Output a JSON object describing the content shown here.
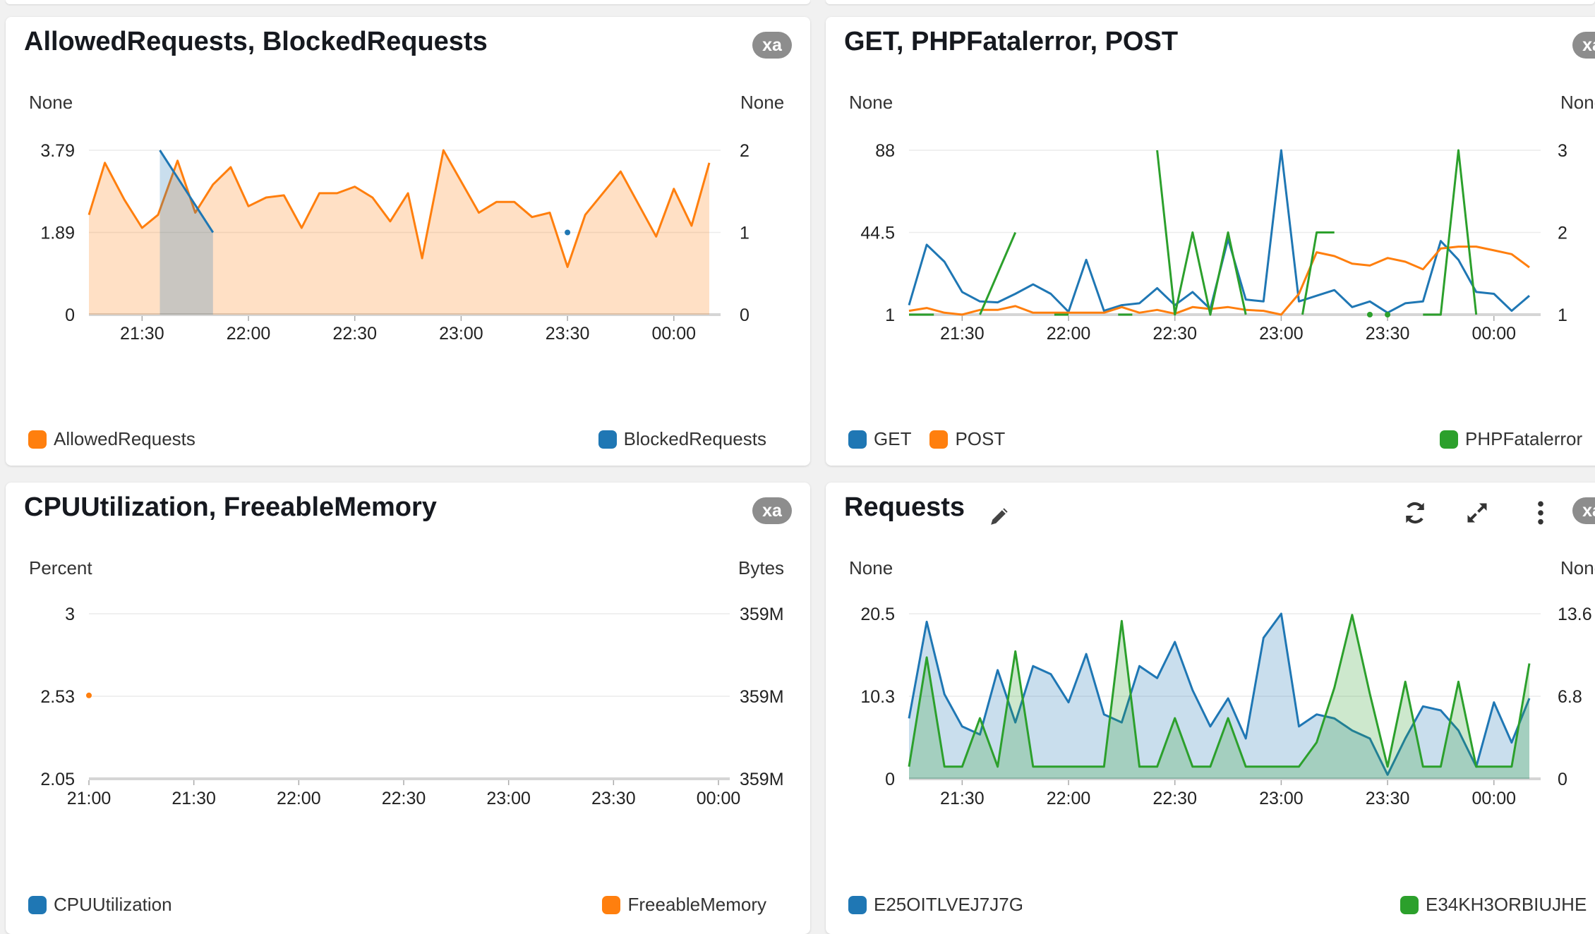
{
  "panels": [
    {
      "title": "AllowedRequests, BlockedRequests",
      "badge": "xa",
      "left_unit": "None",
      "right_unit": "None",
      "legend_left": [
        {
          "name": "AllowedRequests",
          "color": "#ff7f0e"
        }
      ],
      "legend_right": [
        {
          "name": "BlockedRequests",
          "color": "#1f77b4"
        }
      ]
    },
    {
      "title": "GET, PHPFatalerror, POST",
      "badge": "xa",
      "left_unit": "None",
      "right_unit": "None",
      "legend_left": [
        {
          "name": "GET",
          "color": "#1f77b4"
        },
        {
          "name": "POST",
          "color": "#ff7f0e"
        }
      ],
      "legend_right": [
        {
          "name": "PHPFatalerror",
          "color": "#2ca02c"
        }
      ]
    },
    {
      "title": "CPUUtilization, FreeableMemory",
      "badge": "xa",
      "left_unit": "Percent",
      "right_unit": "Bytes",
      "legend_left": [
        {
          "name": "CPUUtilization",
          "color": "#1f77b4"
        }
      ],
      "legend_right": [
        {
          "name": "FreeableMemory",
          "color": "#ff7f0e"
        }
      ]
    },
    {
      "title": "Requests",
      "badge": "xa",
      "left_unit": "None",
      "right_unit": "None",
      "icons": [
        "edit-pencil-icon",
        "refresh-icon",
        "expand-icon",
        "more-vertical-icon"
      ],
      "legend_left": [
        {
          "name": "E25OITLVEJ7J7G",
          "color": "#1f77b4"
        }
      ],
      "legend_right": [
        {
          "name": "E34KH3ORBIUJHE",
          "color": "#2ca02c"
        }
      ]
    }
  ],
  "chart_data": [
    {
      "type": "area",
      "title": "AllowedRequests, BlockedRequests",
      "x_ticks": [
        "21:30",
        "22:00",
        "22:30",
        "23:00",
        "23:30",
        "00:00"
      ],
      "x_tick_minutes": [
        30,
        60,
        90,
        120,
        150,
        180
      ],
      "x_range_minutes": [
        15,
        190
      ],
      "y_left": {
        "label": "None",
        "ticks": [
          "0",
          "1.89",
          "3.79"
        ],
        "range": [
          0,
          3.79
        ]
      },
      "y_right": {
        "label": "None",
        "ticks": [
          "0",
          "1",
          "2"
        ],
        "range": [
          0,
          2
        ]
      },
      "series": [
        {
          "name": "AllowedRequests",
          "axis": "left",
          "color": "#ff7f0e",
          "fill": true,
          "points": [
            [
              15,
              2.3
            ],
            [
              19.5,
              3.5
            ],
            [
              25,
              2.65
            ],
            [
              30,
              2.0
            ],
            [
              34.5,
              2.3
            ],
            [
              40,
              3.55
            ],
            [
              45,
              2.35
            ],
            [
              50,
              3.0
            ],
            [
              55,
              3.4
            ],
            [
              60,
              2.5
            ],
            [
              65,
              2.7
            ],
            [
              70,
              2.75
            ],
            [
              75,
              2.0
            ],
            [
              80,
              2.8
            ],
            [
              85,
              2.8
            ],
            [
              90,
              2.95
            ],
            [
              95,
              2.7
            ],
            [
              100,
              2.15
            ],
            [
              105,
              2.8
            ],
            [
              109,
              1.3
            ],
            [
              115,
              3.79
            ],
            [
              125,
              2.35
            ],
            [
              130,
              2.6
            ],
            [
              135,
              2.6
            ],
            [
              140,
              2.25
            ],
            [
              145,
              2.35
            ],
            [
              150,
              1.1
            ],
            [
              155,
              2.3
            ],
            [
              165,
              3.3
            ],
            [
              175,
              1.8
            ],
            [
              180,
              2.9
            ],
            [
              185,
              2.05
            ],
            [
              190,
              3.5
            ]
          ]
        },
        {
          "name": "BlockedRequests",
          "axis": "right",
          "color": "#1f77b4",
          "fill": true,
          "points": [
            [
              35,
              2.0
            ],
            [
              50,
              1.0
            ]
          ],
          "extra_points": [
            [
              150,
              1.0
            ]
          ]
        }
      ]
    },
    {
      "type": "line",
      "title": "GET, PHPFatalerror, POST",
      "x_ticks": [
        "21:30",
        "22:00",
        "22:30",
        "23:00",
        "23:30",
        "00:00"
      ],
      "x_tick_minutes": [
        30,
        60,
        90,
        120,
        150,
        180
      ],
      "x_range_minutes": [
        15,
        190
      ],
      "y_left": {
        "label": "None",
        "ticks": [
          "1",
          "44.5",
          "88"
        ],
        "range": [
          1,
          88
        ]
      },
      "y_right": {
        "label": "None",
        "ticks": [
          "1",
          "2",
          "3"
        ],
        "range": [
          1,
          3
        ]
      },
      "series": [
        {
          "name": "GET",
          "axis": "left",
          "color": "#1f77b4",
          "points": [
            [
              15,
              6
            ],
            [
              20,
              38
            ],
            [
              25,
              29
            ],
            [
              30,
              13
            ],
            [
              35,
              8
            ],
            [
              40,
              7.5
            ],
            [
              45,
              12
            ],
            [
              50,
              17
            ],
            [
              55,
              12
            ],
            [
              60,
              2.5
            ],
            [
              65,
              30
            ],
            [
              70,
              3
            ],
            [
              75,
              6
            ],
            [
              80,
              7
            ],
            [
              85,
              15
            ],
            [
              90,
              6
            ],
            [
              95,
              13
            ],
            [
              100,
              4
            ],
            [
              105,
              41
            ],
            [
              110,
              9
            ],
            [
              115,
              8
            ],
            [
              120,
              88
            ],
            [
              125,
              8
            ],
            [
              130,
              11
            ],
            [
              135,
              14
            ],
            [
              140,
              5
            ],
            [
              145,
              8
            ],
            [
              150,
              2
            ],
            [
              155,
              7
            ],
            [
              160,
              8
            ],
            [
              165,
              40
            ],
            [
              170,
              30
            ],
            [
              175,
              13
            ],
            [
              180,
              12
            ],
            [
              185,
              3
            ],
            [
              190,
              11
            ]
          ]
        },
        {
          "name": "POST",
          "axis": "left",
          "color": "#ff7f0e",
          "points": [
            [
              15,
              3
            ],
            [
              20,
              4.5
            ],
            [
              25,
              2
            ],
            [
              30,
              1
            ],
            [
              35,
              3.5
            ],
            [
              40,
              3.5
            ],
            [
              45,
              5.5
            ],
            [
              50,
              2
            ],
            [
              55,
              2
            ],
            [
              60,
              2
            ],
            [
              65,
              2
            ],
            [
              70,
              2
            ],
            [
              75,
              5
            ],
            [
              80,
              2
            ],
            [
              85,
              3.5
            ],
            [
              90,
              1.5
            ],
            [
              95,
              5
            ],
            [
              100,
              4
            ],
            [
              105,
              5
            ],
            [
              110,
              3.5
            ],
            [
              115,
              3
            ],
            [
              120,
              1
            ],
            [
              125,
              12
            ],
            [
              130,
              34
            ],
            [
              135,
              32
            ],
            [
              140,
              28
            ],
            [
              145,
              27
            ],
            [
              150,
              31
            ],
            [
              155,
              29
            ],
            [
              160,
              25
            ],
            [
              165,
              36
            ],
            [
              170,
              37
            ],
            [
              175,
              37
            ],
            [
              180,
              35
            ],
            [
              185,
              33
            ],
            [
              190,
              26
            ]
          ]
        },
        {
          "name": "PHPFatalerror",
          "axis": "right",
          "color": "#2ca02c",
          "segments": [
            [
              [
                15,
                1
              ],
              [
                22,
                1
              ]
            ],
            [
              [
                35,
                1
              ],
              [
                45,
                2
              ]
            ],
            [
              [
                56,
                1
              ],
              [
                60,
                1
              ]
            ],
            [
              [
                74,
                1
              ],
              [
                78,
                1
              ]
            ],
            [
              [
                85,
                3
              ],
              [
                90,
                1
              ],
              [
                95,
                2
              ],
              [
                100,
                1
              ],
              [
                105,
                2
              ],
              [
                110,
                1
              ]
            ],
            [
              [
                126,
                1
              ],
              [
                130,
                2
              ],
              [
                135,
                2
              ]
            ],
            [
              [
                160,
                1
              ],
              [
                165,
                1
              ],
              [
                170,
                3
              ],
              [
                175,
                1
              ]
            ]
          ],
          "markers": [
            [
              145,
              1
            ],
            [
              150,
              1
            ]
          ]
        }
      ]
    },
    {
      "type": "line",
      "title": "CPUUtilization, FreeableMemory",
      "x_ticks": [
        "21:00",
        "21:30",
        "22:00",
        "22:30",
        "23:00",
        "23:30",
        "00:00"
      ],
      "x_tick_minutes": [
        0,
        30,
        60,
        90,
        120,
        150,
        180
      ],
      "x_range_minutes": [
        0,
        180
      ],
      "y_left": {
        "label": "Percent",
        "ticks": [
          "2.05",
          "2.53",
          "3"
        ],
        "range": [
          2.05,
          3
        ]
      },
      "y_right": {
        "label": "Bytes",
        "ticks": [
          "359M",
          "359M",
          "359M"
        ],
        "range": [
          0,
          1
        ]
      },
      "series": [
        {
          "name": "CPUUtilization",
          "axis": "left",
          "color": "#1f77b4",
          "points": []
        },
        {
          "name": "FreeableMemory",
          "axis": "left",
          "color": "#ff7f0e",
          "markers": [
            [
              0,
              2.53
            ]
          ]
        }
      ]
    },
    {
      "type": "area",
      "title": "Requests",
      "x_ticks": [
        "21:30",
        "22:00",
        "22:30",
        "23:00",
        "23:30",
        "00:00"
      ],
      "x_tick_minutes": [
        30,
        60,
        90,
        120,
        150,
        180
      ],
      "x_range_minutes": [
        15,
        190
      ],
      "y_left": {
        "label": "None",
        "ticks": [
          "0",
          "10.3",
          "20.5"
        ],
        "range": [
          0,
          20.5
        ]
      },
      "y_right": {
        "label": "None",
        "ticks": [
          "0",
          "6.8",
          "13.6"
        ],
        "range": [
          0,
          13.6
        ]
      },
      "series": [
        {
          "name": "E25OITLVEJ7J7G",
          "axis": "left",
          "color": "#1f77b4",
          "fill": true,
          "points": [
            [
              15,
              7.5
            ],
            [
              20,
              19.5
            ],
            [
              25,
              10.5
            ],
            [
              30,
              6.5
            ],
            [
              35,
              5.5
            ],
            [
              40,
              13.5
            ],
            [
              45,
              7
            ],
            [
              50,
              14
            ],
            [
              55,
              13
            ],
            [
              60,
              9.5
            ],
            [
              65,
              15.5
            ],
            [
              70,
              8
            ],
            [
              75,
              7
            ],
            [
              80,
              14
            ],
            [
              85,
              12.5
            ],
            [
              90,
              17
            ],
            [
              95,
              11
            ],
            [
              100,
              6.5
            ],
            [
              105,
              10
            ],
            [
              110,
              5
            ],
            [
              115,
              17.5
            ],
            [
              120,
              20.5
            ],
            [
              125,
              6.5
            ],
            [
              130,
              8
            ],
            [
              135,
              7.5
            ],
            [
              140,
              6
            ],
            [
              145,
              5
            ],
            [
              150,
              0.5
            ],
            [
              155,
              5
            ],
            [
              160,
              9
            ],
            [
              165,
              8.5
            ],
            [
              170,
              6
            ],
            [
              175,
              1.5
            ],
            [
              180,
              9.5
            ],
            [
              185,
              4.5
            ],
            [
              190,
              10
            ]
          ]
        },
        {
          "name": "E34KH3ORBIUJHE",
          "axis": "right",
          "color": "#2ca02c",
          "fill": true,
          "points": [
            [
              15,
              1
            ],
            [
              20,
              10
            ],
            [
              25,
              1
            ],
            [
              30,
              1
            ],
            [
              35,
              5
            ],
            [
              40,
              1
            ],
            [
              45,
              10.5
            ],
            [
              50,
              1
            ],
            [
              55,
              1
            ],
            [
              60,
              1
            ],
            [
              65,
              1
            ],
            [
              70,
              1
            ],
            [
              75,
              13
            ],
            [
              80,
              1
            ],
            [
              85,
              1
            ],
            [
              90,
              5
            ],
            [
              95,
              1
            ],
            [
              100,
              1
            ],
            [
              105,
              5
            ],
            [
              110,
              1
            ],
            [
              115,
              1
            ],
            [
              120,
              1
            ],
            [
              125,
              1
            ],
            [
              130,
              3
            ],
            [
              135,
              7.5
            ],
            [
              140,
              13.5
            ],
            [
              145,
              7
            ],
            [
              150,
              1
            ],
            [
              155,
              8
            ],
            [
              160,
              1
            ],
            [
              165,
              1
            ],
            [
              170,
              8
            ],
            [
              175,
              1
            ],
            [
              180,
              1
            ],
            [
              185,
              1
            ],
            [
              190,
              9.5
            ]
          ]
        }
      ]
    }
  ]
}
